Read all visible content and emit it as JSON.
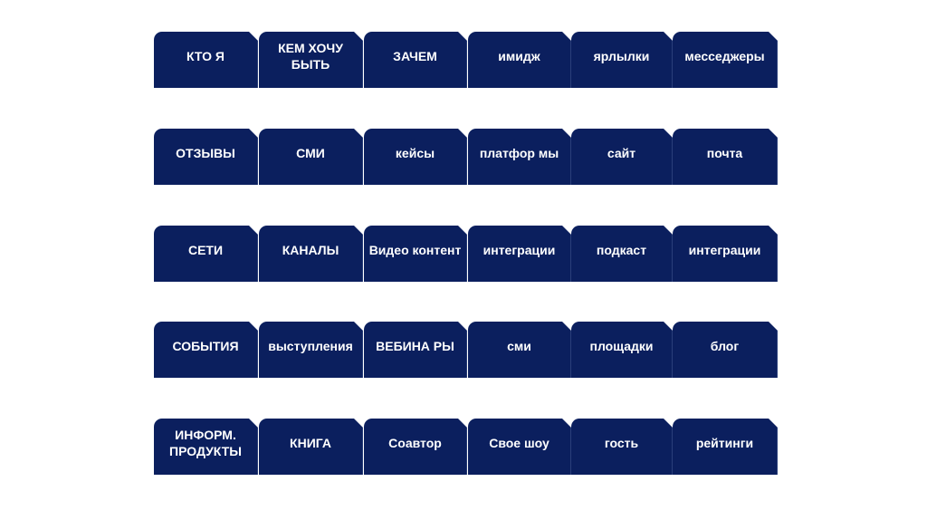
{
  "colors": {
    "tab": "#0b1f5e",
    "text": "#ffffff",
    "background": "#ffffff"
  },
  "rows": [
    [
      "КТО Я",
      "КЕМ ХОЧУ БЫТЬ",
      "ЗАЧЕМ",
      "имидж",
      "ярлылки",
      "месседжеры"
    ],
    [
      "ОТЗЫВЫ",
      "СМИ",
      "кейсы",
      "платфор мы",
      "сайт",
      "почта"
    ],
    [
      "СЕТИ",
      "КАНАЛЫ",
      "Видео контент",
      "интеграции",
      "подкаст",
      "интеграции"
    ],
    [
      "СОБЫТИЯ",
      "выступления",
      "ВЕБИНА РЫ",
      "сми",
      "площадки",
      "блог"
    ],
    [
      "ИНФОРМ. ПРОДУКТЫ",
      "КНИГА",
      "Соавтор",
      "Свое шоу",
      "гость",
      "рейтинги"
    ]
  ]
}
